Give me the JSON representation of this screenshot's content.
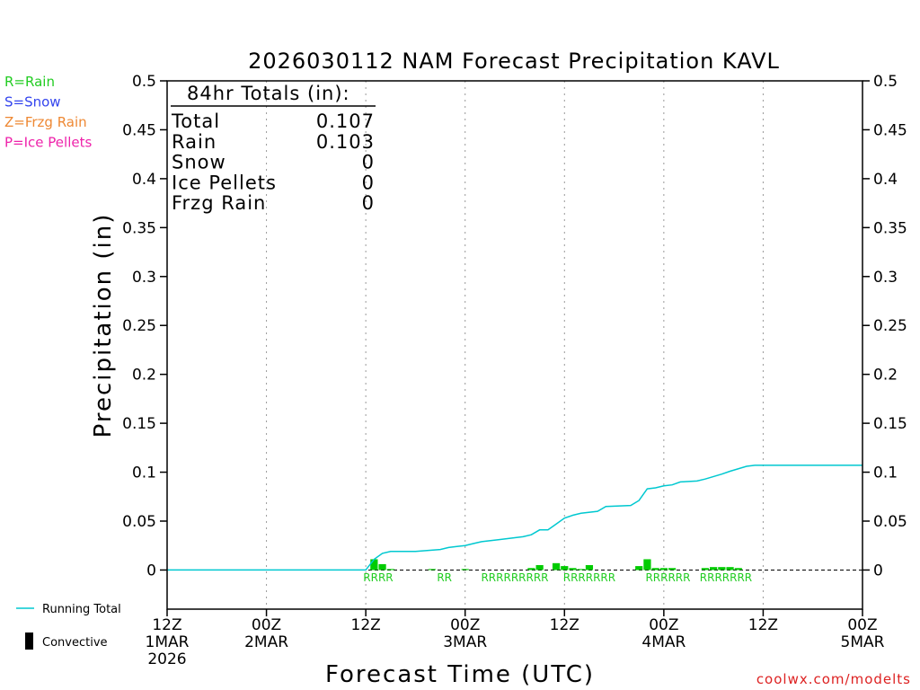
{
  "chart_data": {
    "type": "bar+line",
    "title": "2026030112 NAM Forecast Precipitation KAVL",
    "xlabel": "Forecast Time (UTC)",
    "ylabel": "Precipitation (in)",
    "xlim_hours": [
      0,
      84
    ],
    "ylim": [
      -0.04,
      0.5
    ],
    "y_ticks": [
      0,
      0.05,
      0.1,
      0.15,
      0.2,
      0.25,
      0.3,
      0.35,
      0.4,
      0.45,
      0.5
    ],
    "y_tick_labels": [
      "0",
      "0.05",
      "0.1",
      "0.15",
      "0.2",
      "0.25",
      "0.3",
      "0.35",
      "0.4",
      "0.45",
      "0.5"
    ],
    "x_ticks": [
      {
        "h": 0,
        "time": "12Z",
        "date": "1MAR",
        "year": "2026"
      },
      {
        "h": 12,
        "time": "00Z",
        "date": "2MAR",
        "year": ""
      },
      {
        "h": 24,
        "time": "12Z",
        "date": "",
        "year": ""
      },
      {
        "h": 36,
        "time": "00Z",
        "date": "3MAR",
        "year": ""
      },
      {
        "h": 48,
        "time": "12Z",
        "date": "",
        "year": ""
      },
      {
        "h": 60,
        "time": "00Z",
        "date": "4MAR",
        "year": ""
      },
      {
        "h": 72,
        "time": "12Z",
        "date": "",
        "year": ""
      },
      {
        "h": 84,
        "time": "00Z",
        "date": "5MAR",
        "year": ""
      }
    ],
    "grid": "vertical dotted",
    "running_total": {
      "name": "Running Total",
      "color": "#00c8d0",
      "points": [
        [
          0,
          0
        ],
        [
          24,
          0
        ],
        [
          25,
          0.011
        ],
        [
          26,
          0.017
        ],
        [
          27,
          0.019
        ],
        [
          30,
          0.019
        ],
        [
          33,
          0.021
        ],
        [
          34,
          0.023
        ],
        [
          35,
          0.024
        ],
        [
          36,
          0.025
        ],
        [
          37,
          0.027
        ],
        [
          38,
          0.029
        ],
        [
          40,
          0.031
        ],
        [
          42,
          0.033
        ],
        [
          43,
          0.034
        ],
        [
          44,
          0.036
        ],
        [
          45,
          0.041
        ],
        [
          46,
          0.041
        ],
        [
          47,
          0.047
        ],
        [
          48,
          0.053
        ],
        [
          49,
          0.056
        ],
        [
          50,
          0.058
        ],
        [
          52,
          0.06
        ],
        [
          53,
          0.065
        ],
        [
          56,
          0.066
        ],
        [
          57,
          0.071
        ],
        [
          58,
          0.083
        ],
        [
          59,
          0.084
        ],
        [
          60,
          0.086
        ],
        [
          61,
          0.087
        ],
        [
          62,
          0.09
        ],
        [
          64,
          0.091
        ],
        [
          65,
          0.093
        ],
        [
          67,
          0.098
        ],
        [
          68,
          0.101
        ],
        [
          70,
          0.106
        ],
        [
          71,
          0.107
        ],
        [
          84,
          0.107
        ]
      ]
    },
    "hourly_bars": {
      "color": "#00cc00",
      "points": [
        [
          25,
          0.011
        ],
        [
          26,
          0.006
        ],
        [
          27,
          0.001
        ],
        [
          32,
          0.001
        ],
        [
          36,
          0.001
        ],
        [
          44,
          0.002
        ],
        [
          45,
          0.005
        ],
        [
          47,
          0.007
        ],
        [
          48,
          0.004
        ],
        [
          49,
          0.002
        ],
        [
          50,
          0.001
        ],
        [
          51,
          0.005
        ],
        [
          57,
          0.004
        ],
        [
          58,
          0.011
        ],
        [
          59,
          0.002
        ],
        [
          60,
          0.002
        ],
        [
          61,
          0.002
        ],
        [
          65,
          0.002
        ],
        [
          66,
          0.003
        ],
        [
          67,
          0.003
        ],
        [
          68,
          0.003
        ],
        [
          69,
          0.002
        ]
      ]
    },
    "ptype_labels": [
      {
        "h": 25.5,
        "text": "RRRR"
      },
      {
        "h": 33.5,
        "text": "RR"
      },
      {
        "h": 42.0,
        "text": "RRRRRRRRR"
      },
      {
        "h": 51.0,
        "text": "RRRRRRR"
      },
      {
        "h": 60.5,
        "text": "RRRRRR"
      },
      {
        "h": 67.5,
        "text": "RRRRRRR"
      }
    ]
  },
  "totals": {
    "header": "84hr Totals (in):",
    "rows": [
      {
        "label": "Total",
        "value": "0.107"
      },
      {
        "label": "Rain",
        "value": "0.103"
      },
      {
        "label": "Snow",
        "value": "0"
      },
      {
        "label": "Ice Pellets",
        "value": "0"
      },
      {
        "label": "Frzg Rain",
        "value": "0"
      }
    ]
  },
  "ptype_legend": [
    {
      "text": "R=Rain",
      "color": "#22cc22"
    },
    {
      "text": "S=Snow",
      "color": "#3344ee"
    },
    {
      "text": "Z=Frzg Rain",
      "color": "#ee8833"
    },
    {
      "text": "P=Ice Pellets",
      "color": "#ee22aa"
    }
  ],
  "series_legend": {
    "running_total": "Running Total",
    "convective": "Convective"
  },
  "credit": "coolwx.com/modelts",
  "colors": {
    "running_total": "#00c8d0",
    "bars": "#00cc00",
    "credit": "#dd2222"
  }
}
